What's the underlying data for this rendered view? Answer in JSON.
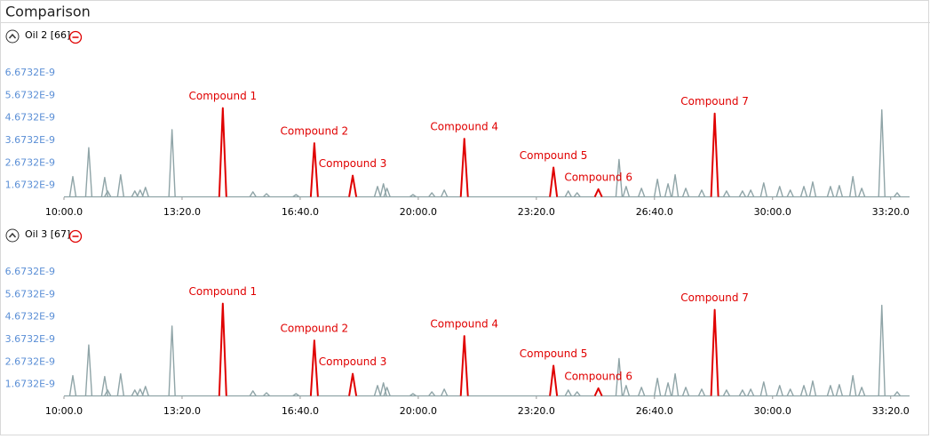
{
  "title": "Comparison",
  "chart_data": [
    {
      "type": "line",
      "title": "Oil 2 [66]",
      "xlim": [
        600,
        2032
      ],
      "xticks": [
        {
          "value": 600,
          "label": "10:00.0"
        },
        {
          "value": 800,
          "label": "13:20.0"
        },
        {
          "value": 1000,
          "label": "16:40.0"
        },
        {
          "value": 1200,
          "label": "20:00.0"
        },
        {
          "value": 1400,
          "label": "23:20.0"
        },
        {
          "value": 1600,
          "label": "26:40.0"
        },
        {
          "value": 1800,
          "label": "30:00.0"
        },
        {
          "value": 2000,
          "label": "33:20.0"
        }
      ],
      "ylim": [
        1.15e-09,
        6.95e-09
      ],
      "yticks": [
        {
          "value": 1.6732e-09,
          "label": "1.6732E-9"
        },
        {
          "value": 2.6732e-09,
          "label": "2.6732E-9"
        },
        {
          "value": 3.6732e-09,
          "label": "3.6732E-9"
        },
        {
          "value": 4.6732e-09,
          "label": "4.6732E-9"
        },
        {
          "value": 5.6732e-09,
          "label": "5.6732E-9"
        },
        {
          "value": 6.6732e-09,
          "label": "6.6732E-9"
        }
      ],
      "series": [
        {
          "color": "#8fa4a7",
          "x": [
            615,
            642,
            669,
            674,
            696,
            720,
            729,
            738,
            783,
            920,
            943,
            993,
            1131,
            1141,
            1147,
            1191,
            1223,
            1244,
            1454,
            1469,
            1540,
            1552,
            1578,
            1605,
            1623,
            1635,
            1653,
            1680,
            1722,
            1749,
            1763,
            1785,
            1812,
            1830,
            1853,
            1868,
            1898,
            1913,
            1936,
            1951,
            1985,
            2011
          ],
          "values": [
            2.07e-09,
            3.35e-09,
            2.03e-09,
            1.43e-09,
            2.15e-09,
            1.43e-09,
            1.47e-09,
            1.59e-09,
            4.15e-09,
            1.39e-09,
            1.31e-09,
            1.27e-09,
            1.63e-09,
            1.75e-09,
            1.55e-09,
            1.27e-09,
            1.35e-09,
            1.47e-09,
            1.43e-09,
            1.35e-09,
            2.83e-09,
            1.63e-09,
            1.55e-09,
            1.95e-09,
            1.75e-09,
            2.15e-09,
            1.55e-09,
            1.47e-09,
            1.43e-09,
            1.43e-09,
            1.47e-09,
            1.79e-09,
            1.63e-09,
            1.47e-09,
            1.63e-09,
            1.83e-09,
            1.63e-09,
            1.67e-09,
            2.07e-09,
            1.55e-09,
            5.03e-09,
            1.35e-09
          ]
        },
        {
          "color": "#e00000",
          "labels": [
            "Compound  1",
            "Compound  2",
            "Compound  3",
            "Compound  4",
            "Compound  5",
            "Compound  6",
            "Compound  7"
          ],
          "x": [
            869,
            1024,
            1089,
            1278,
            1429,
            1505,
            1702
          ],
          "values": [
            5.11e-09,
            3.55e-09,
            2.11e-09,
            3.75e-09,
            2.47e-09,
            1.51e-09,
            4.87e-09
          ]
        }
      ]
    },
    {
      "type": "line",
      "title": "Oil 3 [67]",
      "xlim": [
        600,
        2032
      ],
      "xticks": [
        {
          "value": 600,
          "label": "10:00.0"
        },
        {
          "value": 800,
          "label": "13:20.0"
        },
        {
          "value": 1000,
          "label": "16:40.0"
        },
        {
          "value": 1200,
          "label": "20:00.0"
        },
        {
          "value": 1400,
          "label": "23:20.0"
        },
        {
          "value": 1600,
          "label": "26:40.0"
        },
        {
          "value": 1800,
          "label": "30:00.0"
        },
        {
          "value": 2000,
          "label": "33:20.0"
        }
      ],
      "ylim": [
        1.15e-09,
        6.95e-09
      ],
      "yticks": [
        {
          "value": 1.6732e-09,
          "label": "1.6732E-9"
        },
        {
          "value": 2.6732e-09,
          "label": "2.6732E-9"
        },
        {
          "value": 3.6732e-09,
          "label": "3.6732E-9"
        },
        {
          "value": 4.6732e-09,
          "label": "4.6732E-9"
        },
        {
          "value": 5.6732e-09,
          "label": "5.6732E-9"
        },
        {
          "value": 6.6732e-09,
          "label": "6.6732E-9"
        }
      ],
      "series": [
        {
          "color": "#8fa4a7",
          "x": [
            615,
            642,
            669,
            674,
            696,
            720,
            729,
            738,
            783,
            920,
            943,
            993,
            1131,
            1141,
            1147,
            1191,
            1223,
            1244,
            1454,
            1469,
            1540,
            1552,
            1578,
            1605,
            1623,
            1635,
            1653,
            1680,
            1722,
            1749,
            1763,
            1785,
            1812,
            1830,
            1853,
            1868,
            1898,
            1913,
            1936,
            1951,
            1985,
            2011
          ],
          "values": [
            2.07e-09,
            3.43e-09,
            2.03e-09,
            1.43e-09,
            2.15e-09,
            1.43e-09,
            1.47e-09,
            1.59e-09,
            4.27e-09,
            1.39e-09,
            1.31e-09,
            1.27e-09,
            1.63e-09,
            1.75e-09,
            1.55e-09,
            1.27e-09,
            1.35e-09,
            1.47e-09,
            1.43e-09,
            1.35e-09,
            2.83e-09,
            1.63e-09,
            1.55e-09,
            1.95e-09,
            1.75e-09,
            2.15e-09,
            1.55e-09,
            1.47e-09,
            1.43e-09,
            1.43e-09,
            1.47e-09,
            1.79e-09,
            1.63e-09,
            1.47e-09,
            1.63e-09,
            1.83e-09,
            1.63e-09,
            1.67e-09,
            2.07e-09,
            1.55e-09,
            5.19e-09,
            1.35e-09
          ]
        },
        {
          "color": "#e00000",
          "labels": [
            "Compound  1",
            "Compound  2",
            "Compound  3",
            "Compound  4",
            "Compound  5",
            "Compound  6",
            "Compound  7"
          ],
          "x": [
            869,
            1024,
            1089,
            1278,
            1429,
            1505,
            1702
          ],
          "values": [
            5.27e-09,
            3.63e-09,
            2.15e-09,
            3.83e-09,
            2.51e-09,
            1.51e-09,
            4.99e-09
          ]
        }
      ]
    }
  ]
}
